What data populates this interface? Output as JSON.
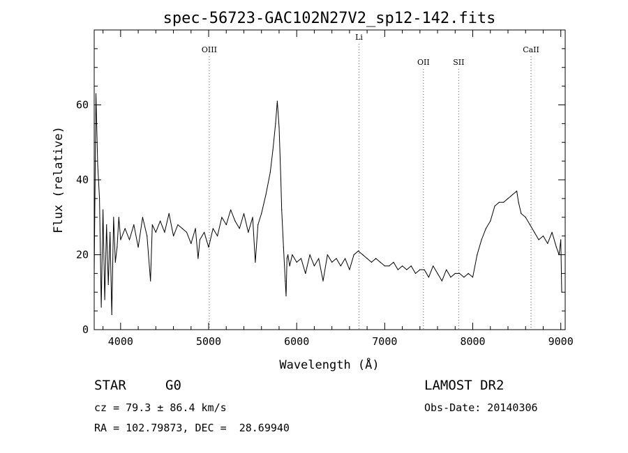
{
  "chart_data": {
    "type": "line",
    "title": "spec-56723-GAC102N27V2_sp12-142.fits",
    "xlabel": "Wavelength (Å)",
    "ylabel": "Flux (relative)",
    "xlim": [
      3700,
      9050
    ],
    "ylim": [
      0,
      80
    ],
    "xticks": [
      "4000",
      "5000",
      "6000",
      "7000",
      "8000",
      "9000"
    ],
    "yticks": [
      "0",
      "20",
      "40",
      "60"
    ],
    "lines": [
      {
        "label": "OIII",
        "x": 5007
      },
      {
        "label": "Li",
        "x": 6708
      },
      {
        "label": "OII",
        "x": 7440
      },
      {
        "label": "SII",
        "x": 7840
      },
      {
        "label": "CaII",
        "x": 8662
      }
    ],
    "series": [
      {
        "x": [
          3700,
          3720,
          3740,
          3760,
          3780,
          3800,
          3820,
          3840,
          3860,
          3880,
          3900,
          3920,
          3940,
          3960,
          3980,
          4000,
          4050,
          4100,
          4150,
          4200,
          4250,
          4300,
          4340,
          4360,
          4400,
          4450,
          4500,
          4550,
          4600,
          4650,
          4700,
          4750,
          4800,
          4850,
          4880,
          4900,
          4950,
          5000,
          5050,
          5100,
          5150,
          5200,
          5250,
          5300,
          5350,
          5400,
          5450,
          5500,
          5530,
          5560,
          5600,
          5650,
          5700,
          5730,
          5760,
          5780,
          5800,
          5820,
          5830,
          5850,
          5870,
          5880,
          5890,
          5900,
          5920,
          5950,
          6000,
          6050,
          6100,
          6150,
          6200,
          6250,
          6300,
          6350,
          6400,
          6450,
          6500,
          6550,
          6600,
          6650,
          6700,
          6750,
          6800,
          6850,
          6900,
          6950,
          7000,
          7050,
          7100,
          7150,
          7200,
          7250,
          7300,
          7350,
          7400,
          7450,
          7500,
          7550,
          7600,
          7650,
          7700,
          7750,
          7800,
          7850,
          7900,
          7950,
          8000,
          8050,
          8100,
          8150,
          8200,
          8250,
          8300,
          8350,
          8400,
          8450,
          8500,
          8520,
          8550,
          8600,
          8650,
          8700,
          8750,
          8800,
          8850,
          8900,
          8950,
          8980,
          9000,
          9010
        ],
        "y": [
          15,
          63,
          44,
          35,
          6,
          32,
          8,
          28,
          12,
          26,
          4,
          30,
          18,
          22,
          30,
          24,
          27,
          24,
          28,
          22,
          30,
          25,
          13,
          28,
          26,
          29,
          26,
          31,
          25,
          28,
          27,
          26,
          23,
          27,
          19,
          24,
          26,
          22,
          27,
          25,
          30,
          28,
          32,
          29,
          27,
          31,
          26,
          30,
          18,
          28,
          31,
          36,
          42,
          48,
          55,
          61,
          54,
          40,
          32,
          22,
          13,
          9,
          19,
          20,
          17,
          20,
          18,
          19,
          15,
          20,
          17,
          19,
          13,
          20,
          18,
          19,
          17,
          19,
          16,
          20,
          21,
          20,
          19,
          18,
          19,
          18,
          17,
          17,
          18,
          16,
          17,
          16,
          17,
          15,
          16,
          16,
          14,
          17,
          15,
          13,
          16,
          14,
          15,
          15,
          14,
          15,
          14,
          20,
          24,
          27,
          29,
          33,
          34,
          34,
          35,
          36,
          37,
          34,
          31,
          30,
          28,
          26,
          24,
          25,
          23,
          26,
          22,
          20,
          24,
          10
        ]
      }
    ]
  },
  "info": {
    "object_class": "STAR",
    "subclass": "G0",
    "survey": "LAMOST DR2",
    "redshift": "cz = 79.3 ± 86.4 km/s",
    "obs_date": "Obs-Date: 20140306",
    "coords": "RA = 102.79873, DEC =  28.69940"
  }
}
